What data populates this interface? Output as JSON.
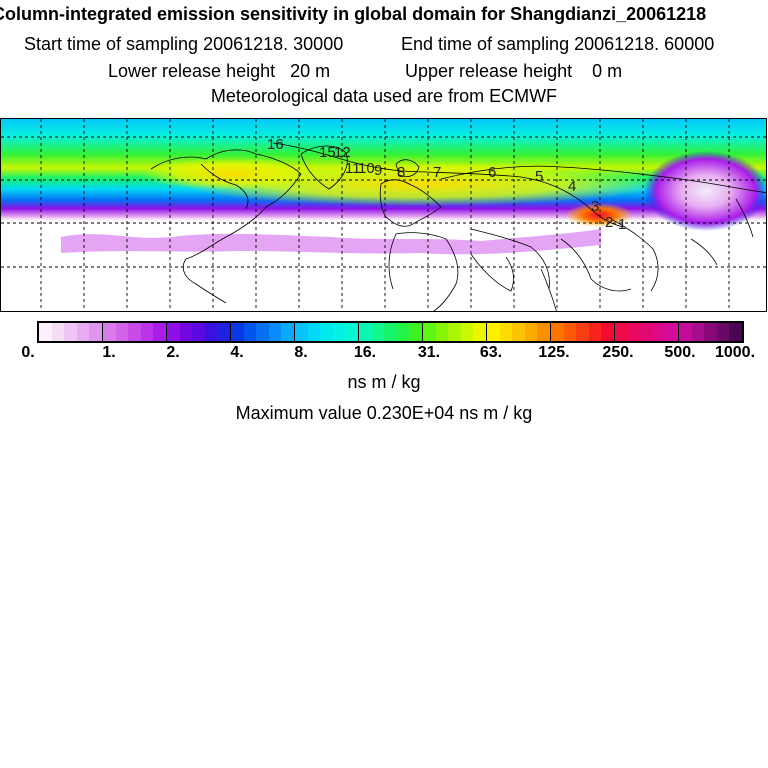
{
  "title": "Column-integrated emission sensitivity in global domain for Shangdianzi_20061218",
  "sampling": {
    "start": "Start time of sampling 20061218. 30000",
    "end": "End time of sampling 20061218. 60000"
  },
  "release": {
    "lower": "Lower release height   20 m",
    "upper": "Upper release height    0 m"
  },
  "meteo": "Meteorological data used are from ECMWF",
  "map": {
    "contour_labels": [
      "16",
      "15",
      "12",
      "11",
      "10",
      "9",
      "8",
      "7",
      "6",
      "5",
      "4",
      "3",
      "2",
      "1"
    ]
  },
  "colorbar": {
    "tick_labels": [
      "0.",
      "1.",
      "2.",
      "4.",
      "8.",
      "16.",
      "31.",
      "63.",
      "125.",
      "250.",
      "500.",
      "1000."
    ],
    "units": "ns m / kg",
    "segment_colors": [
      [
        "#fbf0fb",
        "#f5dcf7",
        "#efc6f4",
        "#e8aef1",
        "#e095ee"
      ],
      [
        "#d97be9",
        "#d264ea",
        "#c84ce9",
        "#bb33ea",
        "#a91de9"
      ],
      [
        "#8f10e6",
        "#7108e2",
        "#5a0ae0",
        "#3a12e0",
        "#1e20e2"
      ],
      [
        "#0a3ae6",
        "#0455ee",
        "#0670f4",
        "#088dfa",
        "#0aa9fc"
      ],
      [
        "#06c4fb",
        "#03d8f6",
        "#02e8ef",
        "#04f2e4",
        "#08f6d0"
      ],
      [
        "#0cf7b4",
        "#12f690",
        "#18f46a",
        "#24f244",
        "#3cf224"
      ],
      [
        "#60f412",
        "#86f608",
        "#aaf604",
        "#ccf602",
        "#eaf602"
      ],
      [
        "#fcf000",
        "#fcdc00",
        "#fcc400",
        "#fcaa00",
        "#fc9000"
      ],
      [
        "#fc7400",
        "#fc5a08",
        "#fa3e14",
        "#f8221e",
        "#f40c30"
      ],
      [
        "#ee0a48",
        "#e8085e",
        "#e20874",
        "#dc0a8a",
        "#d40c9c"
      ],
      [
        "#c40c9a",
        "#a60c8c",
        "#88087a",
        "#6a0866",
        "#4a0650"
      ]
    ]
  },
  "maximum": "Maximum value  0.230E+04 ns m / kg"
}
